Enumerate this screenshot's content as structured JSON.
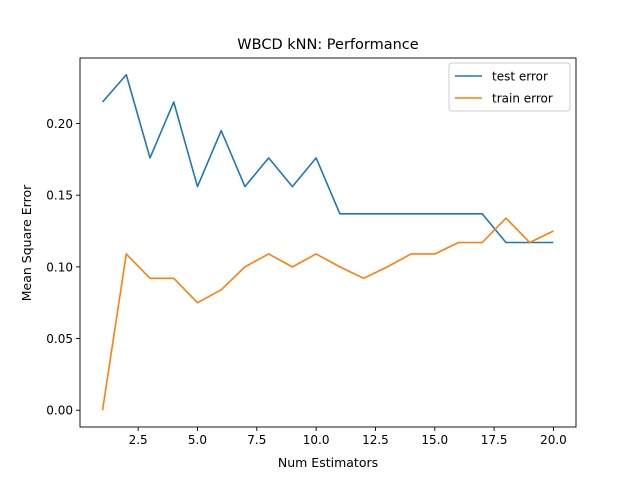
{
  "chart_data": {
    "type": "line",
    "title": "WBCD kNN: Performance",
    "xlabel": "Num Estimators",
    "ylabel": "Mean Square Error",
    "xlim": [
      0.05,
      20.95
    ],
    "ylim": [
      -0.0117,
      0.2457
    ],
    "xticks": [
      2.5,
      5.0,
      7.5,
      10.0,
      12.5,
      15.0,
      17.5,
      20.0
    ],
    "xtick_labels": [
      "2.5",
      "5.0",
      "7.5",
      "10.0",
      "12.5",
      "15.0",
      "17.5",
      "20.0"
    ],
    "yticks": [
      0.0,
      0.05,
      0.1,
      0.15,
      0.2
    ],
    "ytick_labels": [
      "0.00",
      "0.05",
      "0.10",
      "0.15",
      "0.20"
    ],
    "grid": false,
    "legend": "top-right",
    "x": [
      1,
      2,
      3,
      4,
      5,
      6,
      7,
      8,
      9,
      10,
      11,
      12,
      13,
      14,
      15,
      16,
      17,
      18,
      19,
      20
    ],
    "series": [
      {
        "name": "test error",
        "color": "#1f77b4",
        "values": [
          0.215,
          0.234,
          0.176,
          0.215,
          0.156,
          0.195,
          0.156,
          0.176,
          0.156,
          0.176,
          0.137,
          0.137,
          0.137,
          0.137,
          0.137,
          0.137,
          0.137,
          0.117,
          0.117,
          0.117
        ]
      },
      {
        "name": "train error",
        "color": "#ff7f0e",
        "values": [
          0.0,
          0.109,
          0.092,
          0.092,
          0.075,
          0.084,
          0.1,
          0.109,
          0.1,
          0.109,
          0.1,
          0.092,
          0.1,
          0.109,
          0.109,
          0.117,
          0.117,
          0.134,
          0.117,
          0.125
        ]
      }
    ]
  }
}
